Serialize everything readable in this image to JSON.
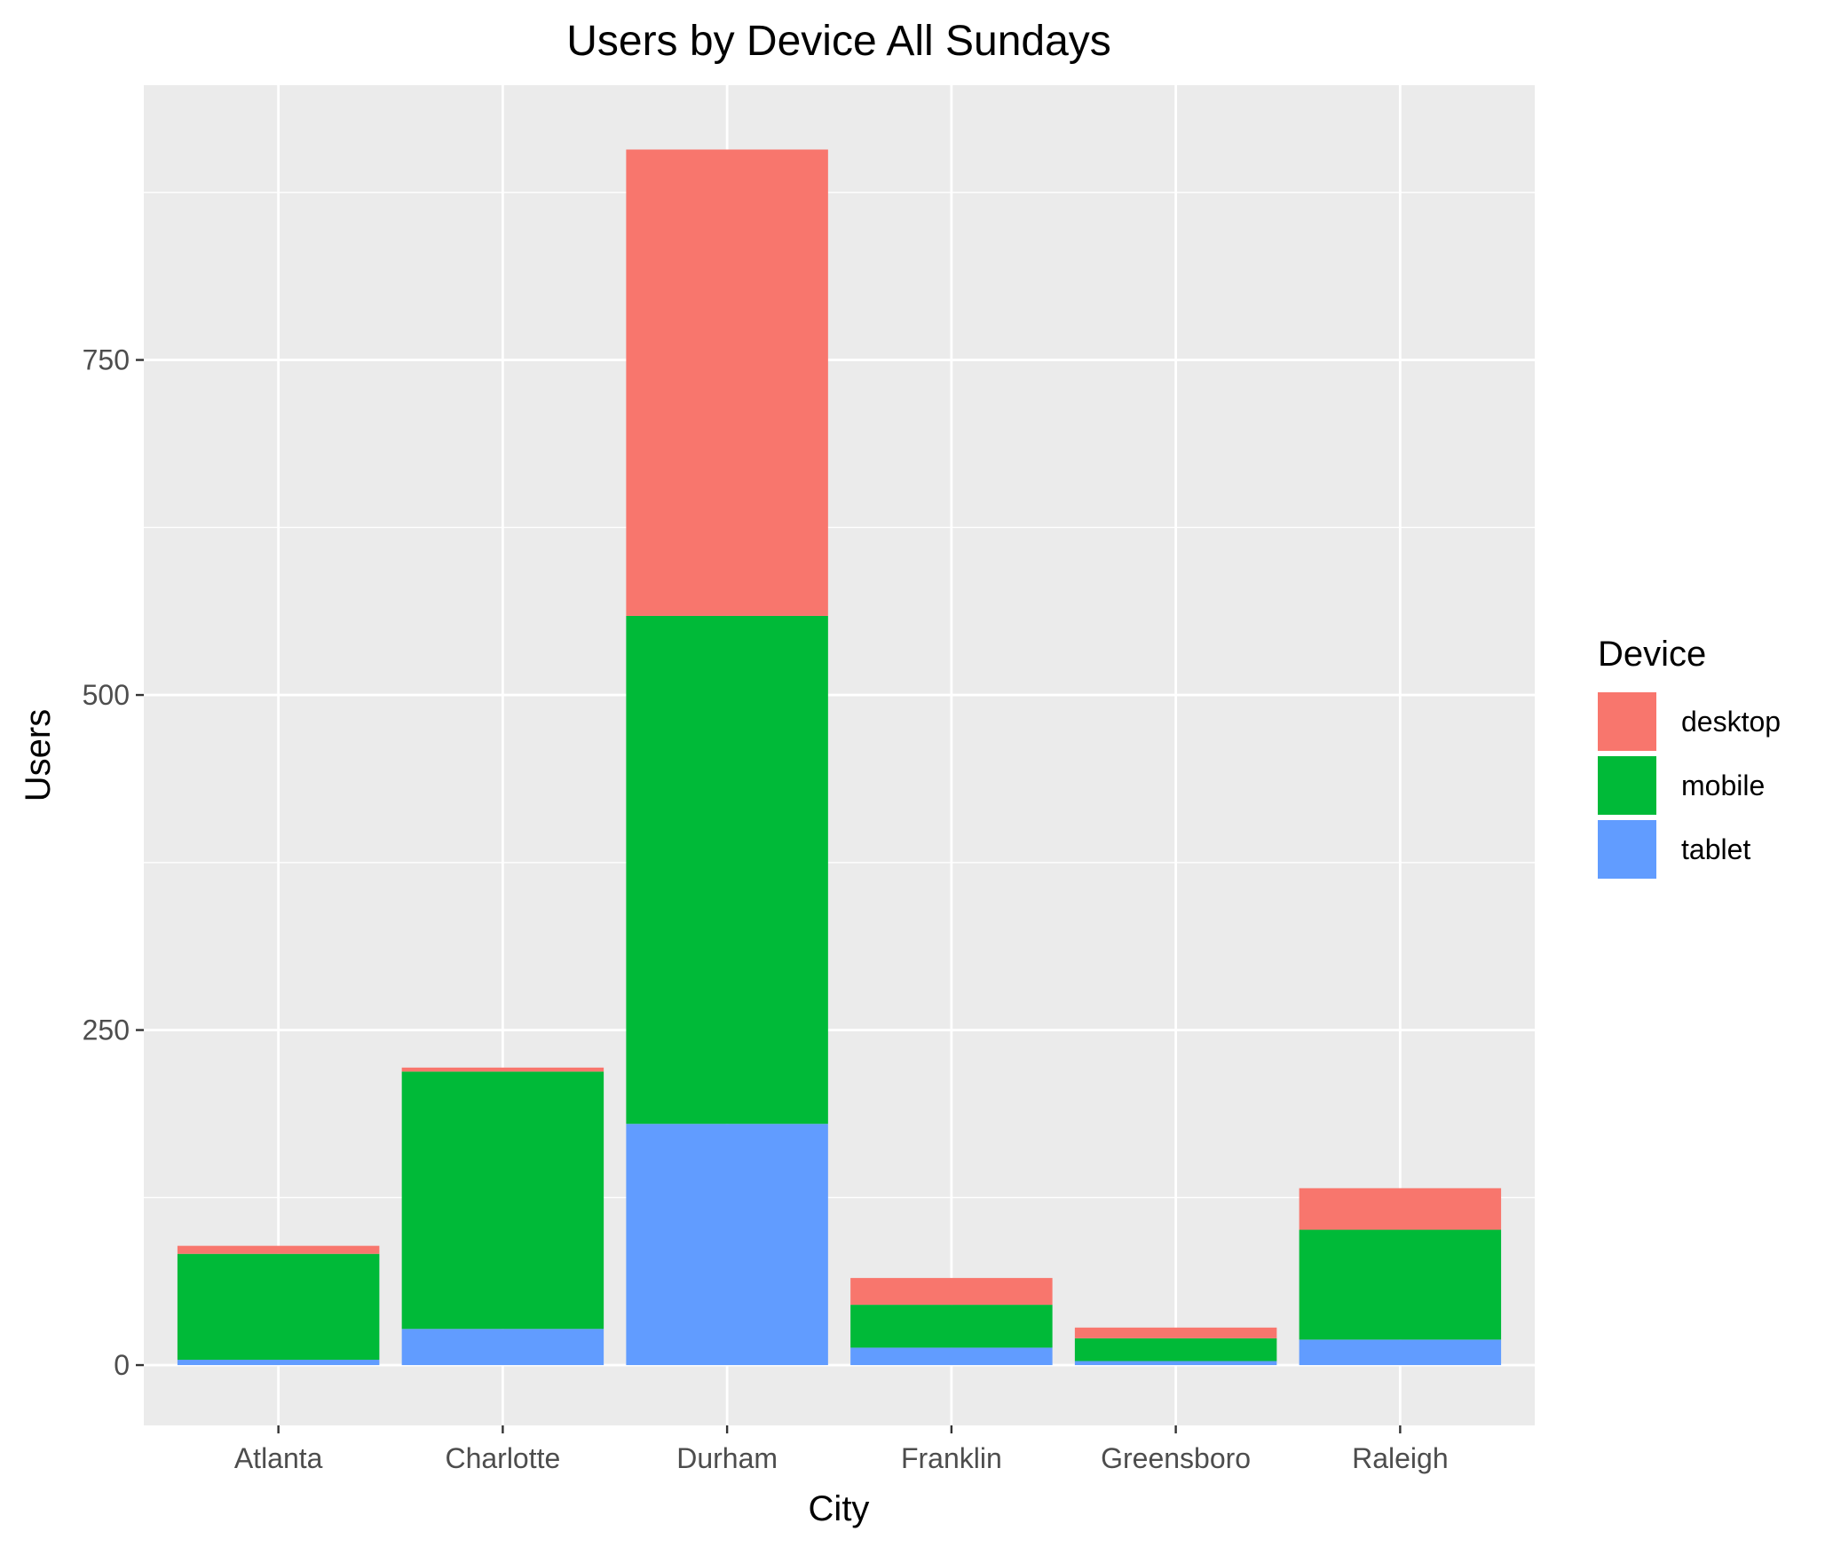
{
  "chart_data": {
    "type": "bar",
    "stacked": true,
    "title": "Users by Device All Sundays",
    "xlabel": "City",
    "ylabel": "Users",
    "categories": [
      "Atlanta",
      "Charlotte",
      "Durham",
      "Franklin",
      "Greensboro",
      "Raleigh"
    ],
    "series": [
      {
        "name": "tablet",
        "color": "#619CFF",
        "values": [
          4,
          27,
          180,
          13,
          3,
          19
        ]
      },
      {
        "name": "mobile",
        "color": "#00BA38",
        "values": [
          79,
          192,
          379,
          32,
          17,
          82
        ]
      },
      {
        "name": "desktop",
        "color": "#F8766D",
        "values": [
          6,
          3,
          348,
          20,
          8,
          31
        ]
      }
    ],
    "ylim": [
      -45,
      955
    ],
    "yticks": [
      0,
      250,
      500,
      750
    ],
    "grid": true,
    "legend": {
      "title": "Device",
      "placement": "right",
      "order": [
        "desktop",
        "mobile",
        "tablet"
      ]
    },
    "colors": {
      "panel_background": "#EBEBEB",
      "grid_line": "#FFFFFF",
      "tick_text": "#4D4D4D"
    }
  }
}
